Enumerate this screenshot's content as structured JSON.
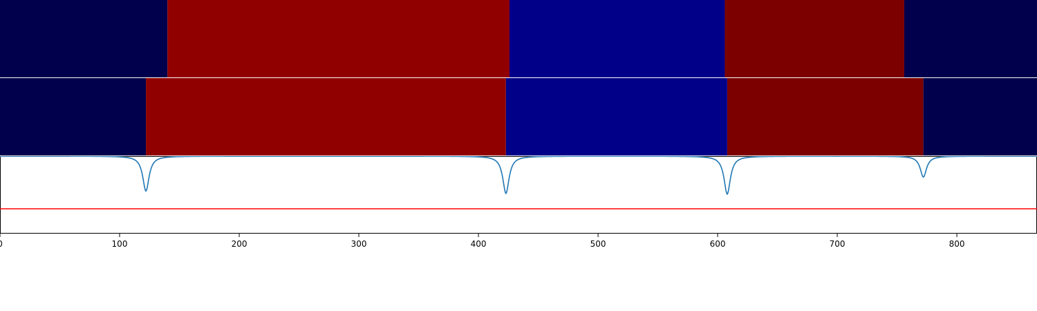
{
  "chart_data": {
    "type": "heatmap",
    "xlim": [
      0,
      867
    ],
    "x_ticks": [
      0,
      100,
      200,
      300,
      400,
      500,
      600,
      700,
      800
    ],
    "x_tick_labels": [
      "0",
      "100",
      "200",
      "300",
      "400",
      "500",
      "600",
      "700",
      "800"
    ],
    "grid": false,
    "legend": "none",
    "panels": [
      {
        "kind": "segments",
        "segments": [
          {
            "start": 0,
            "end": 140,
            "color": "#00004c"
          },
          {
            "start": 140,
            "end": 426,
            "color": "#910000"
          },
          {
            "start": 426,
            "end": 606,
            "color": "#000089"
          },
          {
            "start": 606,
            "end": 756,
            "color": "#7c0000"
          },
          {
            "start": 756,
            "end": 867,
            "color": "#00004c"
          }
        ]
      },
      {
        "kind": "segments",
        "segments": [
          {
            "start": 0,
            "end": 122,
            "color": "#00004c"
          },
          {
            "start": 122,
            "end": 423,
            "color": "#910000"
          },
          {
            "start": 423,
            "end": 608,
            "color": "#000089"
          },
          {
            "start": 608,
            "end": 772,
            "color": "#7c0000"
          },
          {
            "start": 772,
            "end": 867,
            "color": "#00004c"
          }
        ]
      },
      {
        "kind": "line",
        "ylim": [
          -1,
          0
        ],
        "series": [
          {
            "color": "#1f77b4",
            "baseline": 0,
            "dips": [
              {
                "x": 122,
                "depth": -0.45
              },
              {
                "x": 423,
                "depth": -0.48
              },
              {
                "x": 608,
                "depth": -0.49
              },
              {
                "x": 772,
                "depth": -0.27
              }
            ]
          }
        ],
        "threshold": {
          "y": -0.68,
          "color": "#ff0000"
        }
      }
    ]
  }
}
